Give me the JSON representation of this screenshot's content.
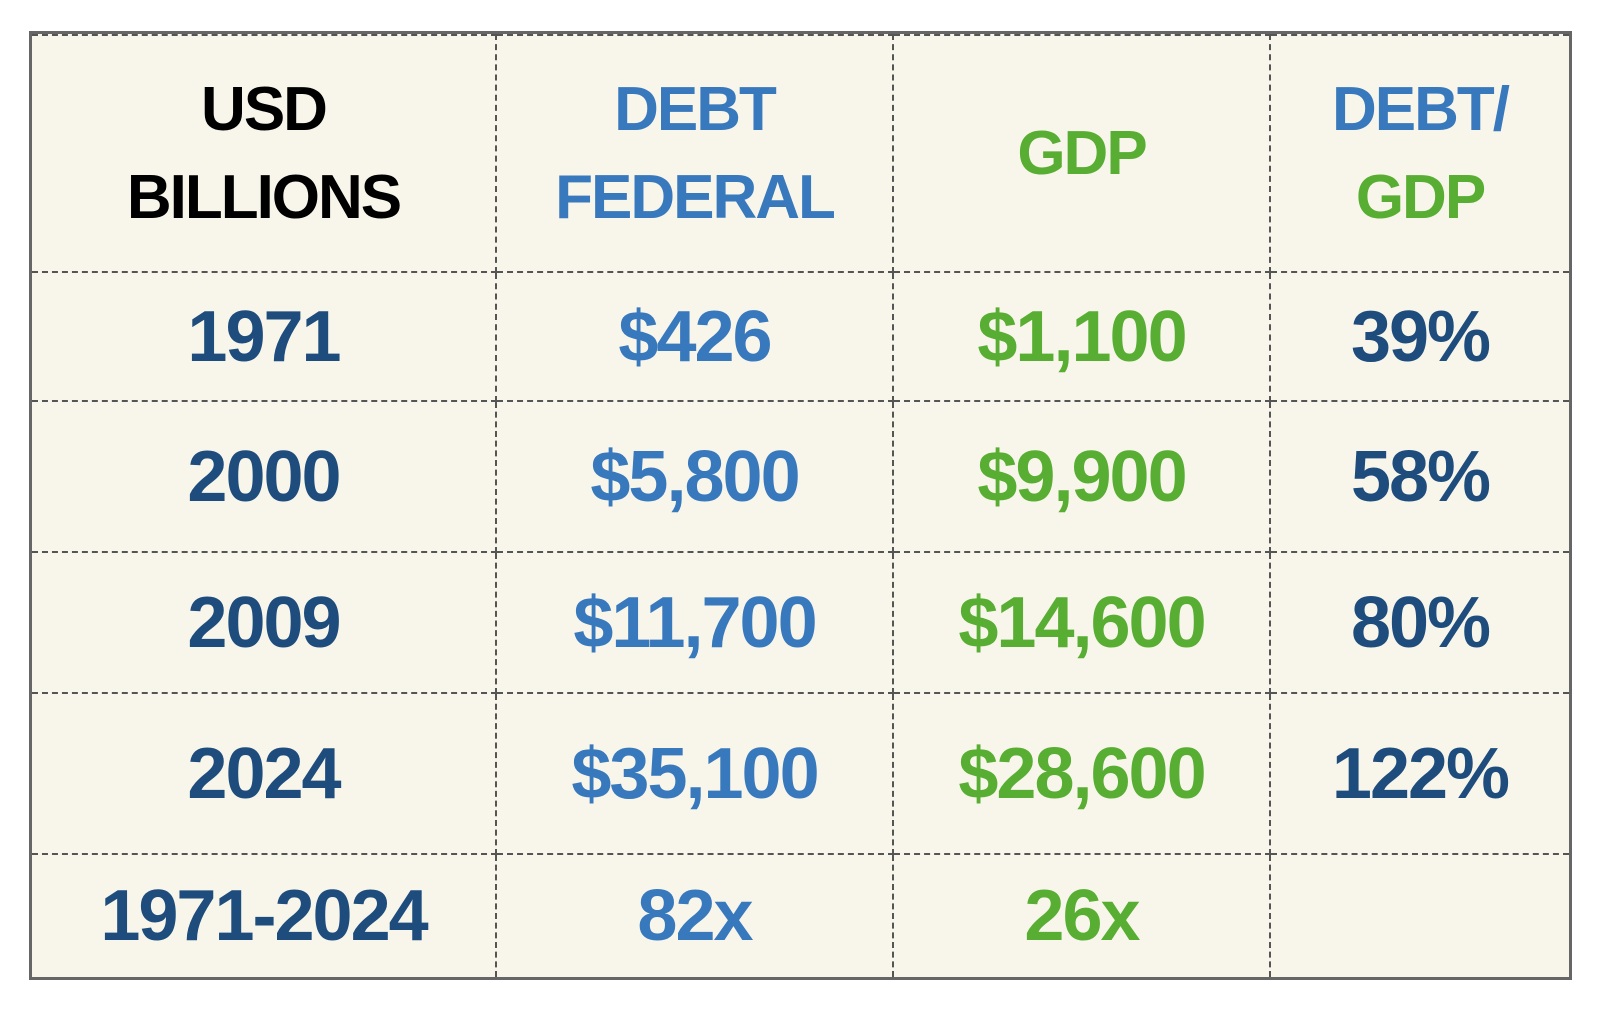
{
  "table": {
    "header": [
      [
        "USD",
        "BILLIONS"
      ],
      [
        "DEBT",
        "FEDERAL"
      ],
      [
        "GDP"
      ],
      [
        "DEBT/",
        "GDP"
      ]
    ],
    "rows": [
      [
        "1971",
        "$426",
        "$1,100",
        "39%"
      ],
      [
        "2000",
        "$5,800",
        "$9,900",
        "58%"
      ],
      [
        "2009",
        "$11,700",
        "$14,600",
        "80%"
      ],
      [
        "2024",
        "$35,100",
        "$28,600",
        "122%"
      ],
      [
        "1971-2024",
        "82x",
        "26x"
      ]
    ]
  }
}
